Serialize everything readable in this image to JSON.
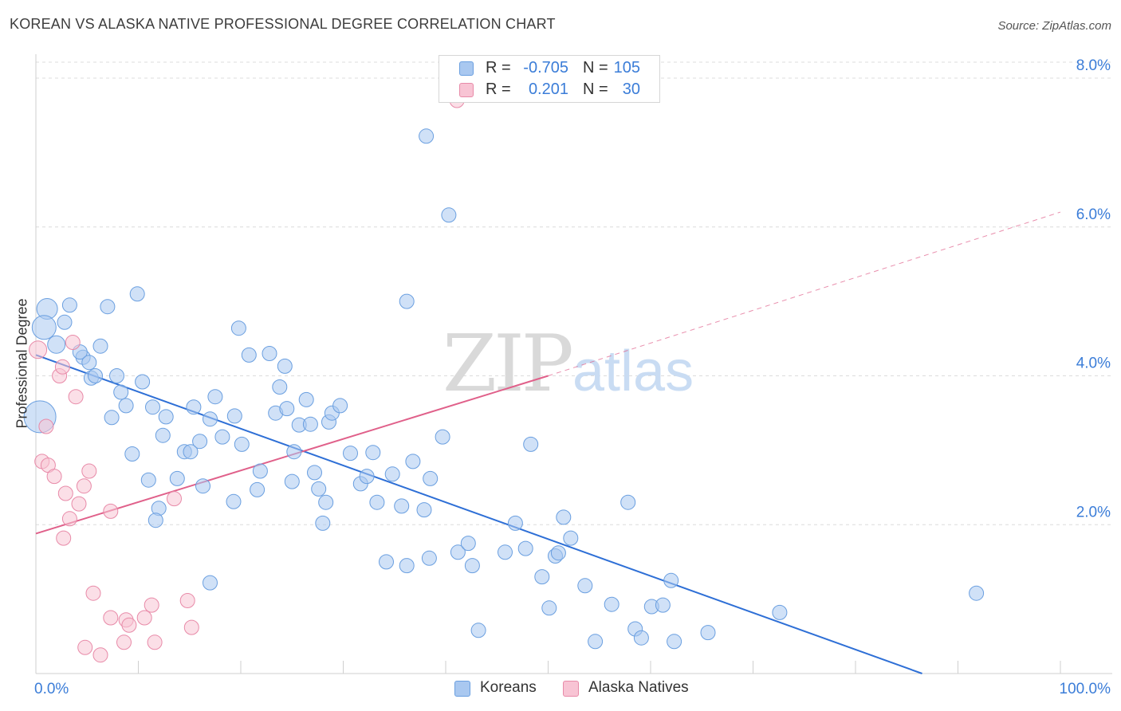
{
  "title": "KOREAN VS ALASKA NATIVE PROFESSIONAL DEGREE CORRELATION CHART",
  "source": "Source: ZipAtlas.com",
  "watermark": {
    "zip": "ZIP",
    "atlas": "atlas"
  },
  "legend": {
    "rows": [
      {
        "r_label": "R =",
        "r_value": "-0.705",
        "n_label": "N =",
        "n_value": "105",
        "color": "#a9c8f0",
        "border": "#6a9fe0"
      },
      {
        "r_label": "R =",
        "r_value": "0.201",
        "n_label": "N =",
        "n_value": "30",
        "color": "#f8c4d4",
        "border": "#e88aa8"
      }
    ]
  },
  "bottom_legend": [
    {
      "label": "Koreans",
      "color": "#a9c8f0",
      "border": "#6a9fe0"
    },
    {
      "label": "Alaska Natives",
      "color": "#f8c4d4",
      "border": "#e88aa8"
    }
  ],
  "chart_data": {
    "type": "scatter",
    "title": "KOREAN VS ALASKA NATIVE PROFESSIONAL DEGREE CORRELATION CHART",
    "xlabel": "",
    "ylabel": "Professional Degree",
    "xlim": [
      0,
      100
    ],
    "ylim": [
      0,
      8.3
    ],
    "x_tick_labels": [
      "0.0%",
      "100.0%"
    ],
    "y_ticks": [
      2.0,
      4.0,
      6.0,
      8.0
    ],
    "y_tick_labels": [
      "2.0%",
      "4.0%",
      "6.0%",
      "8.0%"
    ],
    "grid": true,
    "series": [
      {
        "name": "Koreans",
        "color": "#6a9fe0",
        "fill": "#a9c8f0",
        "trend": {
          "x": [
            0,
            86.5
          ],
          "y": [
            4.28,
            0.0
          ],
          "color": "#2e6fd6"
        },
        "points": [
          [
            1.1,
            4.9,
            13
          ],
          [
            0.8,
            4.65,
            15
          ],
          [
            0.4,
            3.45,
            20
          ],
          [
            2.0,
            4.42,
            11
          ],
          [
            3.3,
            4.95,
            9
          ],
          [
            2.8,
            4.72,
            9
          ],
          [
            4.6,
            4.25,
            9
          ],
          [
            4.3,
            4.32,
            9
          ],
          [
            5.2,
            4.18,
            9
          ],
          [
            6.3,
            4.4,
            9
          ],
          [
            5.4,
            3.97,
            9
          ],
          [
            5.8,
            4.0,
            9
          ],
          [
            7.0,
            4.93,
            9
          ],
          [
            9.9,
            5.1,
            9
          ],
          [
            7.9,
            4.0,
            9
          ],
          [
            10.4,
            3.92,
            9
          ],
          [
            8.3,
            3.78,
            9
          ],
          [
            8.8,
            3.6,
            9
          ],
          [
            7.4,
            3.44,
            9
          ],
          [
            11.4,
            3.58,
            9
          ],
          [
            12.7,
            3.45,
            9
          ],
          [
            15.4,
            3.58,
            9
          ],
          [
            17.5,
            3.72,
            9
          ],
          [
            19.4,
            3.46,
            9
          ],
          [
            17.0,
            3.42,
            9
          ],
          [
            12.4,
            3.2,
            9
          ],
          [
            9.4,
            2.95,
            9
          ],
          [
            11.0,
            2.6,
            9
          ],
          [
            14.5,
            2.98,
            9
          ],
          [
            15.1,
            2.98,
            9
          ],
          [
            16.0,
            3.12,
            9
          ],
          [
            18.2,
            3.18,
            9
          ],
          [
            20.1,
            3.08,
            9
          ],
          [
            13.8,
            2.62,
            9
          ],
          [
            16.3,
            2.52,
            9
          ],
          [
            21.6,
            2.47,
            9
          ],
          [
            21.9,
            2.72,
            9
          ],
          [
            19.3,
            2.31,
            9
          ],
          [
            12.0,
            2.22,
            9
          ],
          [
            11.7,
            2.06,
            9
          ],
          [
            17.0,
            1.22,
            9
          ],
          [
            19.8,
            4.64,
            9
          ],
          [
            20.8,
            4.28,
            9
          ],
          [
            22.8,
            4.3,
            9
          ],
          [
            23.4,
            3.5,
            9
          ],
          [
            23.8,
            3.85,
            9
          ],
          [
            24.3,
            4.13,
            9
          ],
          [
            24.5,
            3.56,
            9
          ],
          [
            25.7,
            3.34,
            9
          ],
          [
            26.4,
            3.68,
            9
          ],
          [
            26.8,
            3.35,
            9
          ],
          [
            28.6,
            3.38,
            9
          ],
          [
            28.9,
            3.5,
            9
          ],
          [
            29.7,
            3.6,
            9
          ],
          [
            25.2,
            2.98,
            9
          ],
          [
            25.0,
            2.58,
            9
          ],
          [
            27.2,
            2.7,
            9
          ],
          [
            27.6,
            2.48,
            9
          ],
          [
            28.3,
            2.3,
            9
          ],
          [
            28.0,
            2.02,
            9
          ],
          [
            30.7,
            2.96,
            9
          ],
          [
            31.7,
            2.55,
            9
          ],
          [
            32.3,
            2.65,
            9
          ],
          [
            32.9,
            2.97,
            9
          ],
          [
            33.3,
            2.3,
            9
          ],
          [
            34.8,
            2.68,
            9
          ],
          [
            35.7,
            2.25,
            9
          ],
          [
            36.2,
            5.0,
            9
          ],
          [
            36.8,
            2.85,
            9
          ],
          [
            37.9,
            2.2,
            9
          ],
          [
            38.5,
            2.62,
            9
          ],
          [
            39.7,
            3.18,
            9
          ],
          [
            34.2,
            1.5,
            9
          ],
          [
            36.2,
            1.45,
            9
          ],
          [
            38.4,
            1.55,
            9
          ],
          [
            38.1,
            7.22,
            9
          ],
          [
            40.3,
            6.16,
            9
          ],
          [
            41.2,
            1.63,
            9
          ],
          [
            42.2,
            1.75,
            9
          ],
          [
            42.6,
            1.45,
            9
          ],
          [
            43.2,
            0.58,
            9
          ],
          [
            45.8,
            1.63,
            9
          ],
          [
            46.8,
            2.02,
            9
          ],
          [
            47.8,
            1.68,
            9
          ],
          [
            48.3,
            3.08,
            9
          ],
          [
            49.4,
            1.3,
            9
          ],
          [
            50.1,
            0.88,
            9
          ],
          [
            50.7,
            1.58,
            9
          ],
          [
            51.0,
            1.62,
            9
          ],
          [
            51.5,
            2.1,
            9
          ],
          [
            52.2,
            1.82,
            9
          ],
          [
            53.6,
            1.18,
            9
          ],
          [
            54.6,
            0.43,
            9
          ],
          [
            56.2,
            0.93,
            9
          ],
          [
            57.8,
            2.3,
            9
          ],
          [
            58.5,
            0.6,
            9
          ],
          [
            59.1,
            0.48,
            9
          ],
          [
            60.1,
            0.9,
            9
          ],
          [
            61.2,
            0.92,
            9
          ],
          [
            62.0,
            1.25,
            9
          ],
          [
            62.3,
            0.43,
            9
          ],
          [
            65.6,
            0.55,
            9
          ],
          [
            72.6,
            0.82,
            9
          ],
          [
            91.8,
            1.08,
            9
          ]
        ]
      },
      {
        "name": "Alaska Natives",
        "color": "#e88aa8",
        "fill": "#f8c4d4",
        "trend": {
          "x": [
            0,
            50.0
          ],
          "y": [
            1.88,
            4.0
          ],
          "color": "#e0608a"
        },
        "trend_extension": {
          "x": [
            50.0,
            100
          ],
          "y": [
            4.0,
            6.2
          ],
          "dash": true
        },
        "points": [
          [
            0.2,
            4.35,
            11
          ],
          [
            1.0,
            3.32,
            9
          ],
          [
            0.6,
            2.85,
            9
          ],
          [
            1.2,
            2.8,
            9
          ],
          [
            1.8,
            2.65,
            9
          ],
          [
            2.3,
            4.0,
            9
          ],
          [
            2.6,
            4.12,
            9
          ],
          [
            3.6,
            4.45,
            9
          ],
          [
            3.9,
            3.72,
            9
          ],
          [
            2.9,
            2.42,
            9
          ],
          [
            4.2,
            2.28,
            9
          ],
          [
            3.3,
            2.08,
            9
          ],
          [
            4.7,
            2.52,
            9
          ],
          [
            5.2,
            2.72,
            9
          ],
          [
            7.3,
            2.18,
            9
          ],
          [
            2.7,
            1.82,
            9
          ],
          [
            5.6,
            1.08,
            9
          ],
          [
            7.3,
            0.75,
            9
          ],
          [
            8.8,
            0.72,
            9
          ],
          [
            9.1,
            0.65,
            9
          ],
          [
            10.6,
            0.75,
            9
          ],
          [
            8.6,
            0.42,
            9
          ],
          [
            11.6,
            0.42,
            9
          ],
          [
            11.3,
            0.92,
            9
          ],
          [
            13.5,
            2.35,
            9
          ],
          [
            14.8,
            0.98,
            9
          ],
          [
            15.2,
            0.62,
            9
          ],
          [
            4.8,
            0.35,
            9
          ],
          [
            6.3,
            0.25,
            9
          ],
          [
            41.1,
            7.7,
            9
          ]
        ]
      }
    ]
  }
}
